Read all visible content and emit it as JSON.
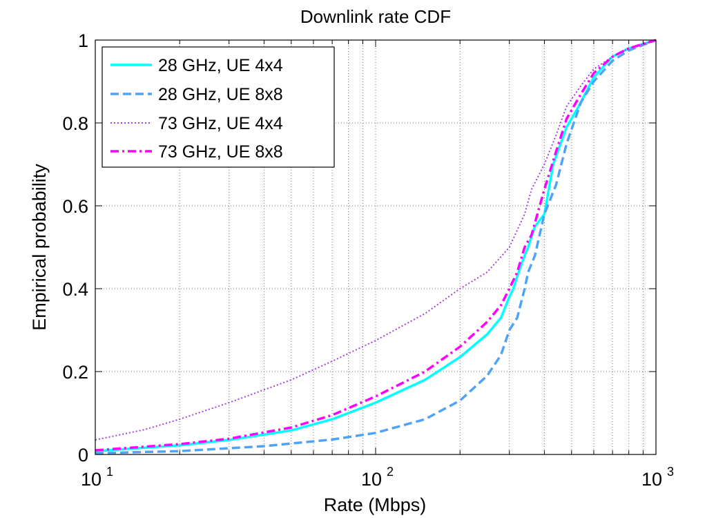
{
  "chart_data": {
    "type": "line",
    "title": "Downlink rate CDF",
    "xlabel": "Rate (Mbps)",
    "ylabel": "Empirical probability",
    "xscale": "log",
    "xlim": [
      10,
      1000
    ],
    "ylim": [
      0,
      1
    ],
    "grid": true,
    "legend_position": "top-left",
    "x_ticks": [
      {
        "base": "10",
        "exp": "1",
        "value": 10
      },
      {
        "base": "10",
        "exp": "2",
        "value": 100
      },
      {
        "base": "10",
        "exp": "3",
        "value": 1000
      }
    ],
    "y_ticks": [
      "0",
      "0.2",
      "0.4",
      "0.6",
      "0.8",
      "1"
    ],
    "series": [
      {
        "name": "28 GHz, UE 4x4",
        "color": "#00ffff",
        "style": "solid",
        "x": [
          10,
          20,
          30,
          50,
          70,
          100,
          150,
          200,
          250,
          280,
          300,
          310,
          320,
          340,
          350,
          370,
          400,
          430,
          480,
          530,
          600,
          700,
          800,
          1000
        ],
        "y": [
          0.008,
          0.022,
          0.035,
          0.058,
          0.085,
          0.125,
          0.18,
          0.235,
          0.29,
          0.33,
          0.38,
          0.4,
          0.43,
          0.48,
          0.5,
          0.55,
          0.58,
          0.7,
          0.79,
          0.84,
          0.91,
          0.96,
          0.98,
          1.0
        ]
      },
      {
        "name": "28 GHz, UE 8x8",
        "color": "#4fa3f7",
        "style": "dashed",
        "x": [
          10,
          20,
          40,
          70,
          100,
          150,
          200,
          250,
          280,
          300,
          320,
          340,
          350,
          370,
          400,
          440,
          480,
          540,
          600,
          700,
          800,
          1000
        ],
        "y": [
          0.003,
          0.008,
          0.02,
          0.036,
          0.052,
          0.085,
          0.13,
          0.19,
          0.24,
          0.3,
          0.33,
          0.4,
          0.44,
          0.48,
          0.58,
          0.65,
          0.75,
          0.85,
          0.9,
          0.95,
          0.975,
          1.0
        ]
      },
      {
        "name": "73 GHz, UE 4x4",
        "color": "#a040e0",
        "style": "dotted",
        "x": [
          10,
          15,
          20,
          30,
          50,
          70,
          100,
          150,
          200,
          250,
          300,
          340,
          360,
          400,
          440,
          480,
          540,
          600,
          700,
          800,
          1000
        ],
        "y": [
          0.035,
          0.06,
          0.085,
          0.125,
          0.18,
          0.225,
          0.275,
          0.34,
          0.4,
          0.44,
          0.5,
          0.58,
          0.64,
          0.7,
          0.77,
          0.84,
          0.89,
          0.93,
          0.96,
          0.98,
          1.0
        ]
      },
      {
        "name": "73 GHz, UE 8x8",
        "color": "#ff00ff",
        "style": "dashdot",
        "x": [
          10,
          20,
          30,
          50,
          70,
          100,
          150,
          200,
          250,
          280,
          300,
          320,
          340,
          360,
          400,
          440,
          480,
          540,
          600,
          700,
          800,
          1000
        ],
        "y": [
          0.01,
          0.025,
          0.038,
          0.065,
          0.095,
          0.14,
          0.2,
          0.26,
          0.32,
          0.36,
          0.4,
          0.44,
          0.5,
          0.53,
          0.64,
          0.73,
          0.81,
          0.87,
          0.92,
          0.96,
          0.98,
          1.0
        ]
      }
    ]
  }
}
